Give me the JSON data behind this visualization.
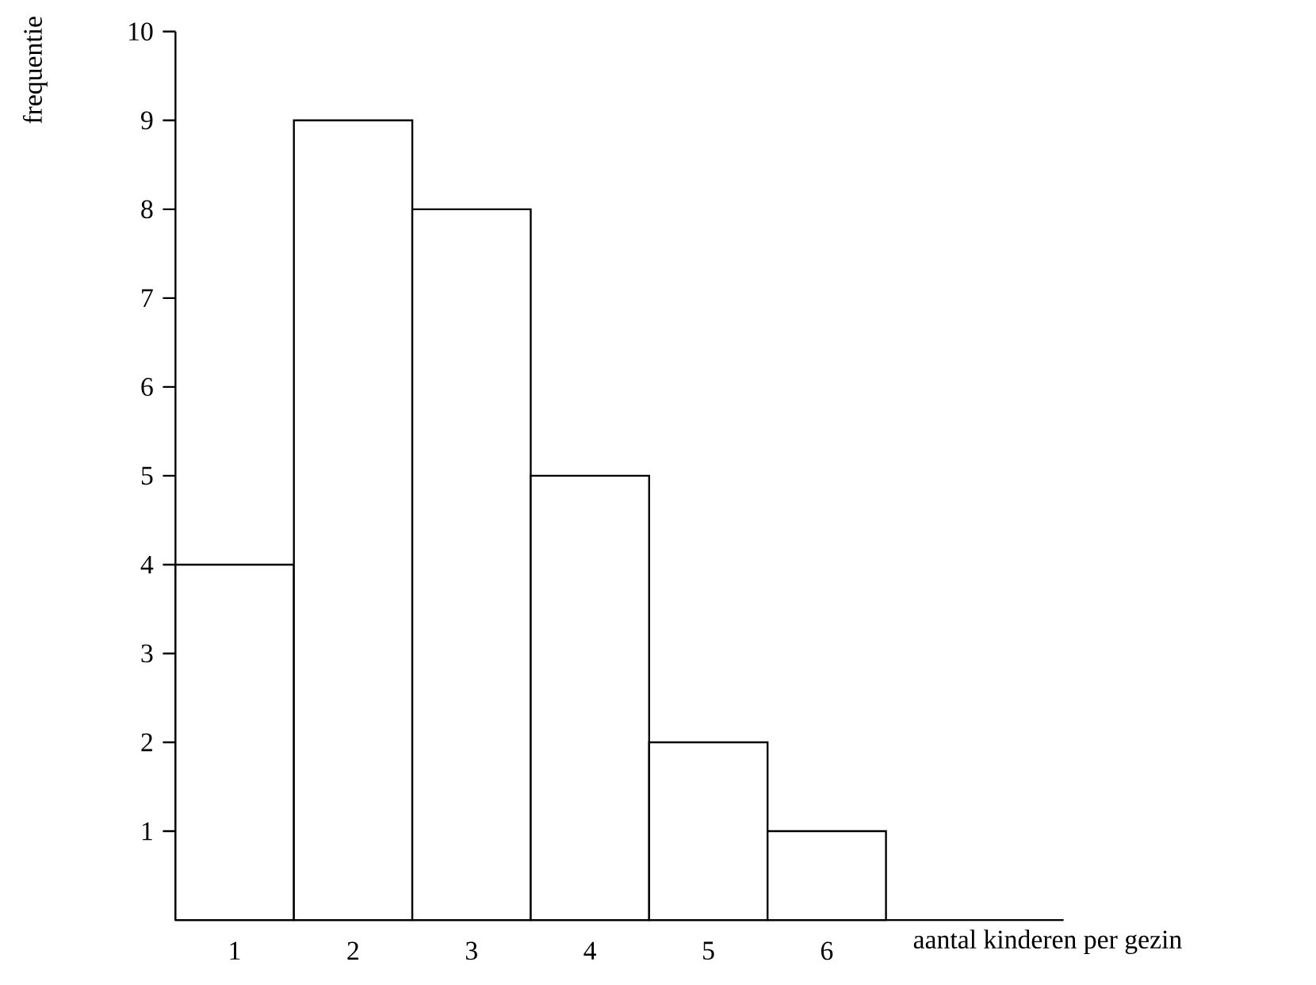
{
  "chart_data": {
    "type": "bar",
    "xlabel": "aantal kinderen per gezin",
    "ylabel": "frequentie",
    "categories": [
      "1",
      "2",
      "3",
      "4",
      "5",
      "6"
    ],
    "values": [
      4,
      9,
      8,
      5,
      2,
      1
    ],
    "color": "#ffffff",
    "ylim": [
      0,
      10
    ],
    "yticks": [
      1,
      2,
      3,
      4,
      5,
      6,
      7,
      8,
      9,
      10
    ]
  }
}
